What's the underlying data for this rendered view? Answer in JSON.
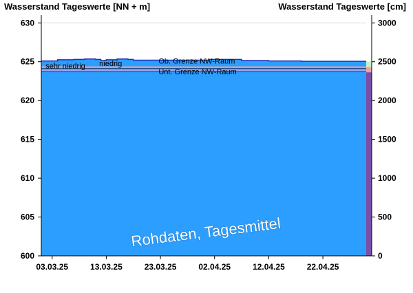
{
  "chart_data": {
    "type": "area",
    "title_left": "Wasserstand Tageswerte [NN + m]",
    "title_right": "Wasserstand Tageswerte [cm]",
    "y_left": {
      "min": 600,
      "max": 631,
      "ticks": [
        600,
        605,
        610,
        615,
        620,
        625,
        630
      ]
    },
    "y_right": {
      "min": 0,
      "max": 3100,
      "ticks": [
        0,
        500,
        1000,
        1500,
        2000,
        2500,
        3000
      ]
    },
    "x_labels": [
      "03.03.25",
      "13.03.25",
      "23.03.25",
      "02.04.25",
      "12.04.25",
      "22.04.25"
    ],
    "x_range_days": [
      0,
      60
    ],
    "x_label_days": [
      2,
      12,
      22,
      32,
      42,
      52
    ],
    "series": [
      {
        "values": [
          {
            "day": 0,
            "level": 625.1
          },
          {
            "day": 2,
            "level": 625.1
          },
          {
            "day": 3,
            "level": 625.25
          },
          {
            "day": 6,
            "level": 625.3
          },
          {
            "day": 8,
            "level": 625.35
          },
          {
            "day": 10,
            "level": 625.3
          },
          {
            "day": 11,
            "level": 625.15
          },
          {
            "day": 12,
            "level": 625.25
          },
          {
            "day": 14,
            "level": 625.35
          },
          {
            "day": 16,
            "level": 625.3
          },
          {
            "day": 17,
            "level": 625.2
          },
          {
            "day": 30,
            "level": 625.2
          },
          {
            "day": 31,
            "level": 625.3
          },
          {
            "day": 36,
            "level": 625.3
          },
          {
            "day": 37,
            "level": 625.15
          },
          {
            "day": 41,
            "level": 625.15
          },
          {
            "day": 42,
            "level": 625.1
          },
          {
            "day": 47,
            "level": 625.1
          },
          {
            "day": 48,
            "level": 625.05
          },
          {
            "day": 59,
            "level": 625.05
          }
        ]
      }
    ],
    "thresholds": [
      {
        "label": "Ob. Grenze NW-Raum",
        "level": 624.3
      },
      {
        "label": "Unt. Grenze NW-Raum",
        "level": 623.9
      }
    ],
    "zone_labels": [
      {
        "label": "sehr niedrig",
        "day": 0.8,
        "level": 624.5
      },
      {
        "label": "niedrig",
        "day": 10.7,
        "level": 624.8
      }
    ],
    "watermark": "Rohdaten, Tagesmittel",
    "colors": {
      "area": "#2b9eff",
      "line": "#2230b4",
      "grid": "#1a5fa8",
      "threshold_upper": "#f0a0a0",
      "threshold_lower": "#a0a0f0",
      "side_bar": "#7a4fa8",
      "side_pink": "#f0a0a0",
      "side_green": "#c8f0c0",
      "side_yellow": "#f0f0c0"
    },
    "grid": true
  }
}
